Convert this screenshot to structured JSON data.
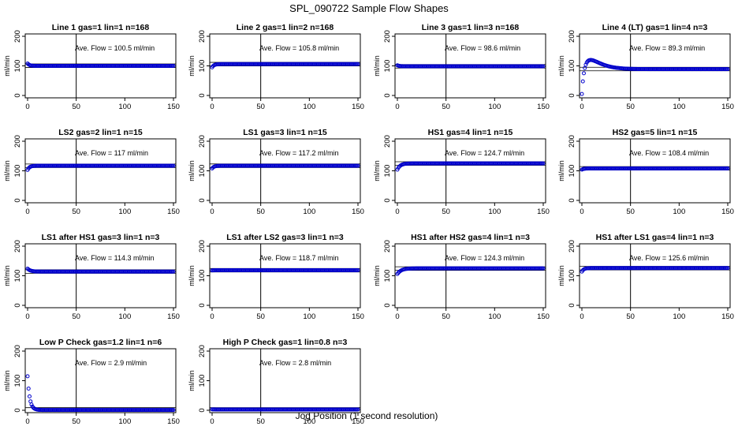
{
  "page": {
    "title": "SPL_090722  Sample Flow Shapes",
    "xlabel": "Jog Position (1 second resolution)"
  },
  "style": {
    "point_color": "#0000cc",
    "axis_color": "#000000"
  },
  "chart_data": [
    {
      "type": "scatter",
      "title": "Line 1 gas=1 lin=1 n=168",
      "ylabel": "ml/min",
      "annotation": "Ave. Flow =  100.5  ml/min",
      "mean": 100.5,
      "vline": 50,
      "xlim": [
        0,
        150
      ],
      "ylim": [
        0,
        200
      ],
      "xticks": [
        0,
        50,
        100,
        150
      ],
      "yticks": [
        0,
        100,
        200
      ],
      "shape": {
        "start": 108,
        "settle": 100,
        "tau": 2,
        "overshoot": 0
      }
    },
    {
      "type": "scatter",
      "title": "Line 2 gas=1 lin=2 n=168",
      "ylabel": "ml/min",
      "annotation": "Ave. Flow =  105.8  ml/min",
      "mean": 105.8,
      "vline": 50,
      "xlim": [
        0,
        150
      ],
      "ylim": [
        0,
        200
      ],
      "xticks": [
        0,
        50,
        100,
        150
      ],
      "yticks": [
        0,
        100,
        200
      ],
      "shape": {
        "start": 95,
        "settle": 106,
        "tau": 2,
        "overshoot": 0
      }
    },
    {
      "type": "scatter",
      "title": "Line 3 gas=1 lin=3 n=168",
      "ylabel": "ml/min",
      "annotation": "Ave. Flow =  98.6  ml/min",
      "mean": 98.6,
      "vline": 50,
      "xlim": [
        0,
        150
      ],
      "ylim": [
        0,
        200
      ],
      "xticks": [
        0,
        50,
        100,
        150
      ],
      "yticks": [
        0,
        100,
        200
      ],
      "shape": {
        "start": 102,
        "settle": 98.6,
        "tau": 2,
        "overshoot": 0
      }
    },
    {
      "type": "scatter",
      "title": "Line 4 (LT) gas=1 lin=4 n=3",
      "ylabel": "ml/min",
      "annotation": "Ave. Flow =  89.3  ml/min",
      "mean": 89.3,
      "vline": 50,
      "xlim": [
        0,
        150
      ],
      "ylim": [
        0,
        200
      ],
      "xticks": [
        0,
        50,
        100,
        150
      ],
      "yticks": [
        0,
        100,
        200
      ],
      "shape": {
        "start": 5,
        "settle": 89,
        "tau": 2,
        "overshoot": 32
      }
    },
    {
      "type": "scatter",
      "title": "LS2 gas=2 lin=1 n=15",
      "ylabel": "ml/min",
      "annotation": "Ave. Flow =  117  ml/min",
      "mean": 117,
      "vline": 50,
      "xlim": [
        0,
        150
      ],
      "ylim": [
        0,
        200
      ],
      "xticks": [
        0,
        50,
        100,
        150
      ],
      "yticks": [
        0,
        100,
        200
      ],
      "shape": {
        "start": 103,
        "settle": 117,
        "tau": 2,
        "overshoot": 0
      }
    },
    {
      "type": "scatter",
      "title": "LS1 gas=3 lin=1 n=15",
      "ylabel": "ml/min",
      "annotation": "Ave. Flow =  117.2  ml/min",
      "mean": 117.2,
      "vline": 50,
      "xlim": [
        0,
        150
      ],
      "ylim": [
        0,
        200
      ],
      "xticks": [
        0,
        50,
        100,
        150
      ],
      "yticks": [
        0,
        100,
        200
      ],
      "shape": {
        "start": 108,
        "settle": 117,
        "tau": 2,
        "overshoot": 0
      }
    },
    {
      "type": "scatter",
      "title": "HS1 gas=4 lin=1 n=15",
      "ylabel": "ml/min",
      "annotation": "Ave. Flow =  124.7  ml/min",
      "mean": 124.7,
      "vline": 50,
      "xlim": [
        0,
        150
      ],
      "ylim": [
        0,
        200
      ],
      "xticks": [
        0,
        50,
        100,
        150
      ],
      "yticks": [
        0,
        100,
        200
      ],
      "shape": {
        "start": 104,
        "settle": 125,
        "tau": 3,
        "overshoot": 0
      }
    },
    {
      "type": "scatter",
      "title": "HS2 gas=5 lin=1 n=15",
      "ylabel": "ml/min",
      "annotation": "Ave. Flow =  108.4  ml/min",
      "mean": 108.4,
      "vline": 50,
      "xlim": [
        0,
        150
      ],
      "ylim": [
        0,
        200
      ],
      "xticks": [
        0,
        50,
        100,
        150
      ],
      "yticks": [
        0,
        100,
        200
      ],
      "shape": {
        "start": 104,
        "settle": 108,
        "tau": 2,
        "overshoot": 0
      }
    },
    {
      "type": "scatter",
      "title": "LS1 after HS1 gas=3 lin=1 n=3",
      "ylabel": "ml/min",
      "annotation": "Ave. Flow =  114.3  ml/min",
      "mean": 114.3,
      "vline": 50,
      "xlim": [
        0,
        150
      ],
      "ylim": [
        0,
        200
      ],
      "xticks": [
        0,
        50,
        100,
        150
      ],
      "yticks": [
        0,
        100,
        200
      ],
      "shape": {
        "start": 124,
        "settle": 114,
        "tau": 3,
        "overshoot": 0
      }
    },
    {
      "type": "scatter",
      "title": "LS1 after LS2 gas=3 lin=1 n=3",
      "ylabel": "ml/min",
      "annotation": "Ave. Flow =  118.7  ml/min",
      "mean": 118.7,
      "vline": 50,
      "xlim": [
        0,
        150
      ],
      "ylim": [
        0,
        200
      ],
      "xticks": [
        0,
        50,
        100,
        150
      ],
      "yticks": [
        0,
        100,
        200
      ],
      "shape": {
        "start": 118,
        "settle": 118.7,
        "tau": 2,
        "overshoot": 0
      }
    },
    {
      "type": "scatter",
      "title": "HS1 after HS2 gas=4 lin=1 n=3",
      "ylabel": "ml/min",
      "annotation": "Ave. Flow =  124.3  ml/min",
      "mean": 124.3,
      "vline": 50,
      "xlim": [
        0,
        150
      ],
      "ylim": [
        0,
        200
      ],
      "xticks": [
        0,
        50,
        100,
        150
      ],
      "yticks": [
        0,
        100,
        200
      ],
      "shape": {
        "start": 106,
        "settle": 125,
        "tau": 4,
        "overshoot": 0
      }
    },
    {
      "type": "scatter",
      "title": "HS1 after LS1 gas=4 lin=1 n=3",
      "ylabel": "ml/min",
      "annotation": "Ave. Flow =  125.6  ml/min",
      "mean": 125.6,
      "vline": 50,
      "xlim": [
        0,
        150
      ],
      "ylim": [
        0,
        200
      ],
      "xticks": [
        0,
        50,
        100,
        150
      ],
      "yticks": [
        0,
        100,
        200
      ],
      "shape": {
        "start": 114,
        "settle": 126,
        "tau": 2,
        "overshoot": 0
      }
    },
    {
      "type": "scatter",
      "title": "Low P Check gas=1.2 lin=1 n=6",
      "ylabel": "ml/min",
      "annotation": "Ave. Flow =  2.9  ml/min",
      "mean": 2.9,
      "vline": 50,
      "xlim": [
        0,
        150
      ],
      "ylim": [
        0,
        200
      ],
      "xticks": [
        0,
        50,
        100,
        150
      ],
      "yticks": [
        0,
        100,
        200
      ],
      "shape": {
        "start": 115,
        "settle": 1,
        "tau": 2.2,
        "overshoot": 0
      }
    },
    {
      "type": "scatter",
      "title": "High P Check gas=1 lin=0.8 n=3",
      "ylabel": "ml/min",
      "annotation": "Ave. Flow =  2.8  ml/min",
      "mean": 2.8,
      "vline": 50,
      "xlim": [
        0,
        150
      ],
      "ylim": [
        0,
        200
      ],
      "xticks": [
        0,
        50,
        100,
        150
      ],
      "yticks": [
        0,
        100,
        200
      ],
      "shape": {
        "start": 3,
        "settle": 2.8,
        "tau": 2,
        "overshoot": 0
      }
    }
  ]
}
